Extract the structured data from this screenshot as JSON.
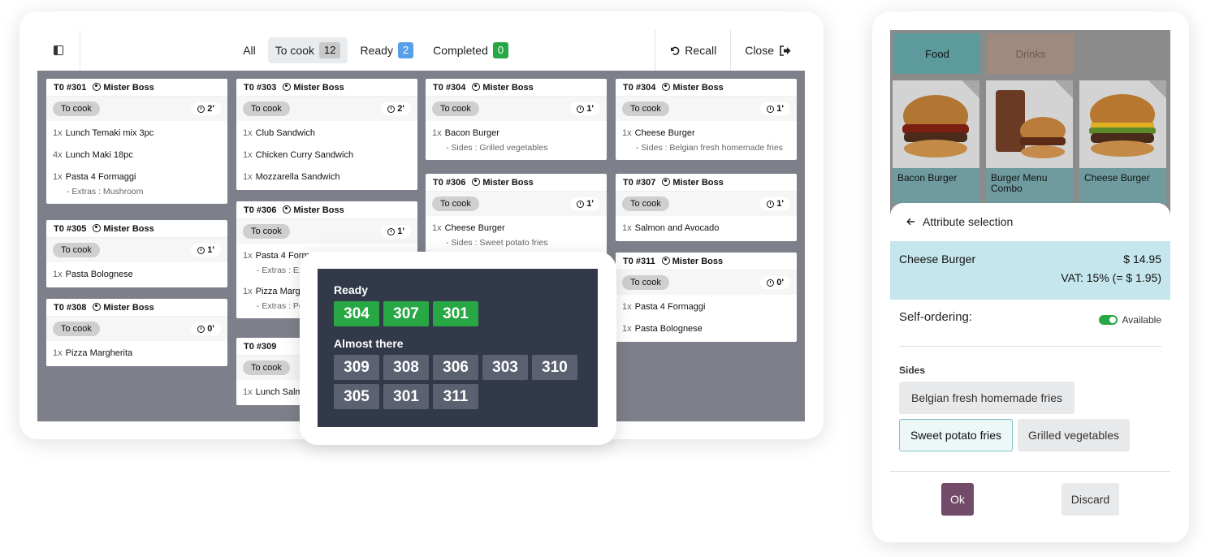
{
  "kitchen": {
    "filters": [
      {
        "label": "All",
        "count": null
      },
      {
        "label": "To cook",
        "count": "12"
      },
      {
        "label": "Ready",
        "count": "2"
      },
      {
        "label": "Completed",
        "count": "0"
      }
    ],
    "recall_label": "Recall",
    "close_label": "Close",
    "cards": [
      {
        "id": "T0 #301",
        "user": "Mister Boss",
        "status": "To cook",
        "time": "2'",
        "lines": [
          {
            "qty": "1x",
            "name": "Lunch Temaki mix 3pc"
          },
          {
            "qty": "4x",
            "name": "Lunch Maki 18pc"
          },
          {
            "qty": "1x",
            "name": "Pasta 4 Formaggi",
            "sub": "- Extras : Mushroom"
          }
        ]
      },
      {
        "id": "T0 #305",
        "user": "Mister Boss",
        "status": "To cook",
        "time": "1'",
        "lines": [
          {
            "qty": "1x",
            "name": "Pasta Bolognese"
          }
        ]
      },
      {
        "id": "T0 #308",
        "user": "Mister Boss",
        "status": "To cook",
        "time": "0'",
        "lines": [
          {
            "qty": "1x",
            "name": "Pizza Margherita"
          }
        ]
      },
      {
        "id": "T0 #303",
        "user": "Mister Boss",
        "status": "To cook",
        "time": "2'",
        "lines": [
          {
            "qty": "1x",
            "name": "Club Sandwich"
          },
          {
            "qty": "1x",
            "name": "Chicken Curry Sandwich"
          },
          {
            "qty": "1x",
            "name": "Mozzarella Sandwich"
          }
        ]
      },
      {
        "id": "T0 #306",
        "user": "Mister Boss",
        "status": "To cook",
        "time": "1'",
        "lines": [
          {
            "qty": "1x",
            "name": "Pasta 4 Formaggi",
            "sub": "- Extras : Ext"
          },
          {
            "qty": "1x",
            "name": "Pizza Margh",
            "sub": "- Extras : Pep"
          }
        ]
      },
      {
        "id": "T0 #309",
        "user": "",
        "status": "To cook",
        "time": "",
        "lines": [
          {
            "qty": "1x",
            "name": "Lunch Salm"
          }
        ]
      },
      {
        "id": "T0 #304",
        "user": "Mister Boss",
        "status": "To cook",
        "time": "1'",
        "lines": [
          {
            "qty": "1x",
            "name": "Bacon Burger",
            "sub": "- Sides : Grilled vegetables"
          }
        ]
      },
      {
        "id": "T0 #306",
        "user": "Mister Boss",
        "status": "To cook",
        "time": "1'",
        "lines": [
          {
            "qty": "1x",
            "name": "Cheese Burger",
            "sub": "- Sides : Sweet potato fries"
          }
        ]
      },
      {
        "id": "T0 #304",
        "user": "Mister Boss",
        "status": "To cook",
        "time": "1'",
        "lines": [
          {
            "qty": "1x",
            "name": "Cheese Burger",
            "sub": "- Sides : Belgian fresh homemade fries"
          }
        ]
      },
      {
        "id": "T0 #307",
        "user": "Mister Boss",
        "status": "To cook",
        "time": "1'",
        "lines": [
          {
            "qty": "1x",
            "name": "Salmon and Avocado"
          }
        ]
      },
      {
        "id": "T0 #311",
        "user": "Mister Boss",
        "status": "To cook",
        "time": "0'",
        "lines": [
          {
            "qty": "1x",
            "name": "Pasta 4 Formaggi"
          },
          {
            "qty": "1x",
            "name": "Pasta Bolognese"
          }
        ]
      }
    ]
  },
  "order_display": {
    "ready_title": "Ready",
    "ready": [
      "304",
      "307",
      "301"
    ],
    "almost_title": "Almost there",
    "almost": [
      "309",
      "308",
      "306",
      "303",
      "310",
      "305",
      "301",
      "311"
    ]
  },
  "pos": {
    "categories": [
      "Food",
      "Drinks"
    ],
    "products": [
      "Bacon Burger",
      "Burger Menu Combo",
      "Cheese Burger"
    ],
    "back_label": "Attribute selection",
    "product_name": "Cheese Burger",
    "price": "$ 14.95",
    "vat": "VAT: 15% (= $ 1.95)",
    "self_ordering_label": "Self-ordering:",
    "available_label": "Available",
    "sides_label": "Sides",
    "options": [
      "Belgian fresh homemade fries",
      "Sweet potato fries",
      "Grilled vegetables"
    ],
    "ok_label": "Ok",
    "discard_label": "Discard"
  },
  "colors": {
    "ready": "#28a745",
    "brand": "#714b67",
    "board": "#7d7f8a",
    "selected": "#c5e6ec"
  }
}
